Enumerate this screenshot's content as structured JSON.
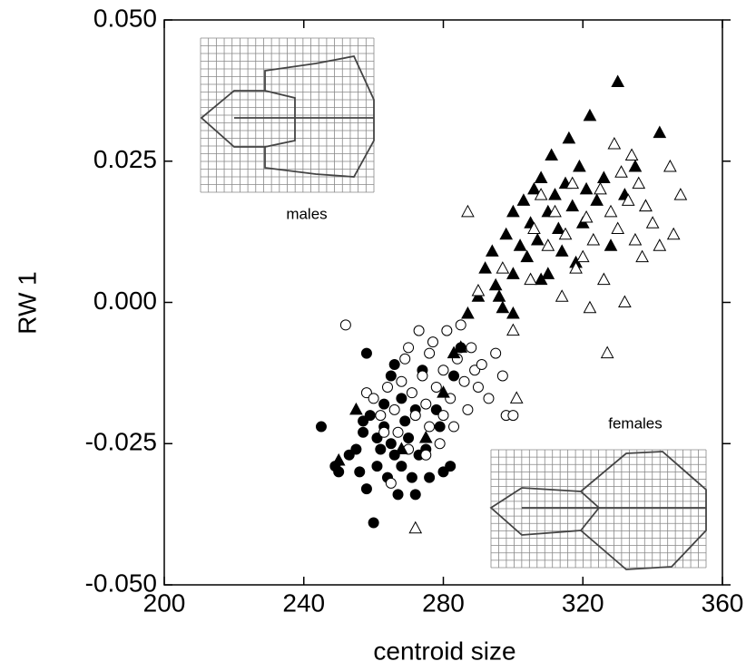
{
  "chart_data": {
    "type": "scatter",
    "xlabel": "centroid size",
    "ylabel": "RW 1",
    "annotations": [
      "males",
      "females"
    ],
    "xlim": [
      200,
      360
    ],
    "xticks": [
      200,
      240,
      280,
      320,
      360
    ],
    "ylim": [
      -0.05,
      0.05
    ],
    "yticks": [
      {
        "value": -0.05,
        "label": "-0.050"
      },
      {
        "value": -0.025,
        "label": "-0.025"
      },
      {
        "value": 0,
        "label": "0.000"
      },
      {
        "value": 0.025,
        "label": "0.025"
      },
      {
        "value": 0.05,
        "label": "0.050"
      }
    ],
    "series": [
      {
        "marker": "circle",
        "filled": true,
        "color": "#000000",
        "x": [
          245,
          249,
          250,
          253,
          255,
          256,
          257,
          257,
          258,
          258,
          259,
          260,
          261,
          261,
          262,
          263,
          263,
          264,
          265,
          265,
          266,
          267,
          268,
          268,
          269,
          270,
          271,
          272,
          272,
          273,
          274,
          275,
          276,
          278,
          279,
          280,
          282,
          283,
          285,
          266
        ],
        "values": [
          -0.022,
          -0.029,
          -0.03,
          -0.027,
          -0.026,
          -0.03,
          -0.021,
          -0.023,
          -0.009,
          -0.033,
          -0.02,
          -0.039,
          -0.024,
          -0.029,
          -0.026,
          -0.018,
          -0.022,
          -0.031,
          -0.013,
          -0.025,
          -0.027,
          -0.034,
          -0.017,
          -0.029,
          -0.021,
          -0.024,
          -0.031,
          -0.034,
          -0.019,
          -0.027,
          -0.012,
          -0.026,
          -0.031,
          -0.019,
          -0.022,
          -0.03,
          -0.029,
          -0.013,
          -0.008,
          -0.011
        ]
      },
      {
        "marker": "circle",
        "filled": false,
        "color": "#000000",
        "x": [
          252,
          258,
          260,
          262,
          264,
          266,
          267,
          268,
          269,
          270,
          271,
          272,
          273,
          274,
          275,
          276,
          276,
          277,
          278,
          279,
          280,
          280,
          281,
          282,
          283,
          284,
          285,
          286,
          287,
          288,
          289,
          290,
          291,
          293,
          295,
          297,
          298,
          300,
          270,
          265,
          275,
          263
        ],
        "values": [
          -0.004,
          -0.016,
          -0.017,
          -0.02,
          -0.015,
          -0.019,
          -0.023,
          -0.014,
          -0.01,
          -0.008,
          -0.016,
          -0.02,
          -0.005,
          -0.013,
          -0.018,
          -0.022,
          -0.009,
          -0.007,
          -0.015,
          -0.025,
          -0.012,
          -0.02,
          -0.005,
          -0.017,
          -0.022,
          -0.01,
          -0.004,
          -0.014,
          -0.019,
          -0.008,
          -0.012,
          -0.015,
          -0.011,
          -0.017,
          -0.009,
          -0.013,
          -0.02,
          -0.02,
          -0.026,
          -0.032,
          -0.027,
          -0.023
        ]
      },
      {
        "marker": "triangle",
        "filled": true,
        "color": "#000000",
        "x": [
          250,
          255,
          268,
          275,
          280,
          283,
          285,
          287,
          290,
          292,
          294,
          295,
          297,
          298,
          300,
          300,
          302,
          303,
          304,
          305,
          306,
          307,
          308,
          308,
          310,
          311,
          312,
          313,
          314,
          315,
          316,
          317,
          318,
          319,
          320,
          321,
          322,
          324,
          326,
          328,
          330,
          332,
          335,
          338,
          342,
          300,
          296,
          310
        ],
        "values": [
          -0.028,
          -0.019,
          -0.026,
          -0.024,
          -0.016,
          -0.009,
          -0.008,
          -0.002,
          0.001,
          0.006,
          0.009,
          0.003,
          -0.001,
          0.012,
          0.005,
          0.016,
          0.01,
          0.018,
          0.008,
          0.014,
          0.02,
          0.011,
          0.004,
          0.022,
          0.016,
          0.026,
          0.019,
          0.013,
          0.009,
          0.021,
          0.029,
          0.017,
          0.007,
          0.024,
          0.014,
          0.02,
          0.033,
          0.018,
          0.022,
          0.01,
          0.039,
          0.019,
          0.024,
          0.017,
          0.03,
          -0.002,
          0.001,
          0.005
        ]
      },
      {
        "marker": "triangle",
        "filled": false,
        "color": "#000000",
        "x": [
          272,
          287,
          290,
          297,
          300,
          301,
          305,
          306,
          308,
          310,
          312,
          314,
          315,
          317,
          318,
          320,
          321,
          323,
          325,
          326,
          327,
          328,
          330,
          331,
          332,
          333,
          334,
          335,
          336,
          337,
          338,
          340,
          342,
          345,
          346,
          348,
          329,
          322
        ],
        "values": [
          -0.04,
          0.016,
          0.002,
          0.006,
          -0.005,
          -0.017,
          0.004,
          0.013,
          0.019,
          0.01,
          0.016,
          0.001,
          0.012,
          0.021,
          0.006,
          0.008,
          0.015,
          0.011,
          0.02,
          0.004,
          -0.009,
          0.016,
          0.013,
          0.023,
          0.0,
          0.018,
          0.026,
          0.011,
          0.021,
          0.008,
          0.017,
          0.014,
          0.01,
          0.024,
          0.012,
          0.019,
          0.028,
          -0.001
        ]
      }
    ]
  }
}
